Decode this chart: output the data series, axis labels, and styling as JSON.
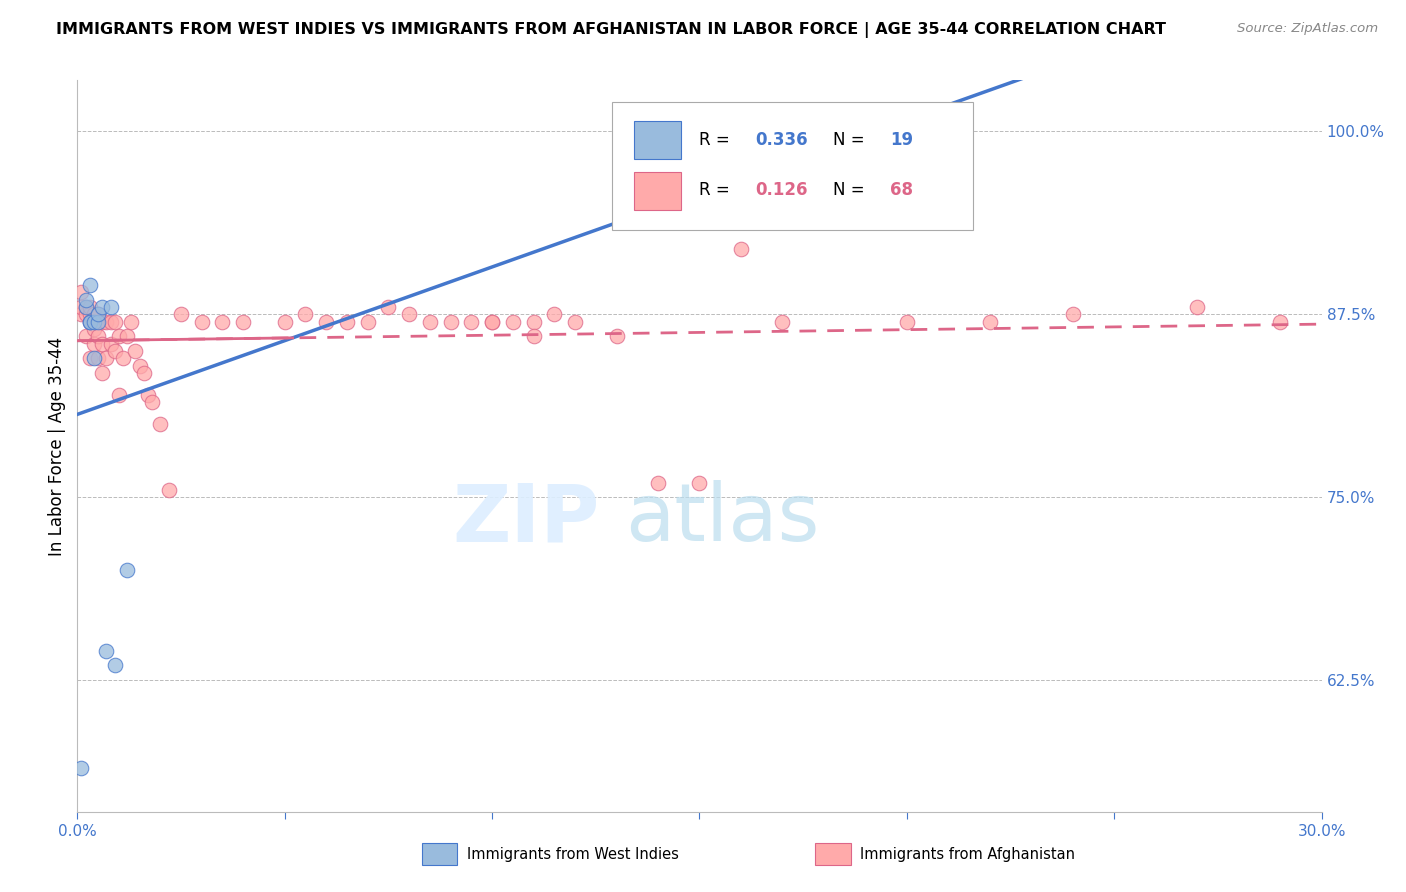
{
  "title": "IMMIGRANTS FROM WEST INDIES VS IMMIGRANTS FROM AFGHANISTAN IN LABOR FORCE | AGE 35-44 CORRELATION CHART",
  "source": "Source: ZipAtlas.com",
  "ylabel": "In Labor Force | Age 35-44",
  "xlim": [
    0.0,
    0.3
  ],
  "ylim": [
    0.535,
    1.035
  ],
  "xticks": [
    0.0,
    0.05,
    0.1,
    0.15,
    0.2,
    0.25,
    0.3
  ],
  "xticklabels": [
    "0.0%",
    "",
    "",
    "",
    "",
    "",
    "30.0%"
  ],
  "yticks": [
    0.625,
    0.75,
    0.875,
    1.0
  ],
  "yticklabels": [
    "62.5%",
    "75.0%",
    "87.5%",
    "100.0%"
  ],
  "blue_color": "#99BBDD",
  "pink_color": "#FFAAAA",
  "line_blue_color": "#4477CC",
  "line_pink_color": "#DD6688",
  "axis_color": "#4477CC",
  "grid_color": "#BBBBBB",
  "west_indies_x": [
    0.001,
    0.002,
    0.002,
    0.003,
    0.003,
    0.003,
    0.004,
    0.004,
    0.005,
    0.005,
    0.006,
    0.007,
    0.008,
    0.009,
    0.012,
    0.185,
    0.19
  ],
  "west_indies_y": [
    0.565,
    0.88,
    0.885,
    0.87,
    0.87,
    0.895,
    0.87,
    0.845,
    0.87,
    0.875,
    0.88,
    0.645,
    0.88,
    0.635,
    0.7,
    1.0,
    1.0
  ],
  "afghanistan_x": [
    0.001,
    0.001,
    0.001,
    0.002,
    0.002,
    0.002,
    0.003,
    0.003,
    0.003,
    0.003,
    0.004,
    0.004,
    0.004,
    0.005,
    0.005,
    0.005,
    0.006,
    0.006,
    0.006,
    0.007,
    0.007,
    0.008,
    0.008,
    0.009,
    0.009,
    0.01,
    0.01,
    0.011,
    0.012,
    0.013,
    0.014,
    0.015,
    0.016,
    0.017,
    0.018,
    0.02,
    0.022,
    0.025,
    0.03,
    0.035,
    0.04,
    0.05,
    0.055,
    0.06,
    0.065,
    0.07,
    0.075,
    0.08,
    0.085,
    0.09,
    0.095,
    0.1,
    0.105,
    0.11,
    0.115,
    0.12,
    0.13,
    0.14,
    0.15,
    0.16,
    0.17,
    0.2,
    0.22,
    0.24,
    0.27,
    0.29,
    0.1,
    0.11
  ],
  "afghanistan_y": [
    0.875,
    0.88,
    0.89,
    0.86,
    0.875,
    0.88,
    0.845,
    0.87,
    0.875,
    0.88,
    0.855,
    0.865,
    0.875,
    0.845,
    0.86,
    0.875,
    0.835,
    0.855,
    0.87,
    0.845,
    0.87,
    0.855,
    0.87,
    0.85,
    0.87,
    0.82,
    0.86,
    0.845,
    0.86,
    0.87,
    0.85,
    0.84,
    0.835,
    0.82,
    0.815,
    0.8,
    0.755,
    0.875,
    0.87,
    0.87,
    0.87,
    0.87,
    0.875,
    0.87,
    0.87,
    0.87,
    0.88,
    0.875,
    0.87,
    0.87,
    0.87,
    0.87,
    0.87,
    0.87,
    0.875,
    0.87,
    0.86,
    0.76,
    0.76,
    0.92,
    0.87,
    0.87,
    0.87,
    0.875,
    0.88,
    0.87,
    0.87,
    0.86
  ],
  "wi_slope": 0.55,
  "wi_intercept": 0.845,
  "af_slope": 0.18,
  "af_intercept": 0.862
}
